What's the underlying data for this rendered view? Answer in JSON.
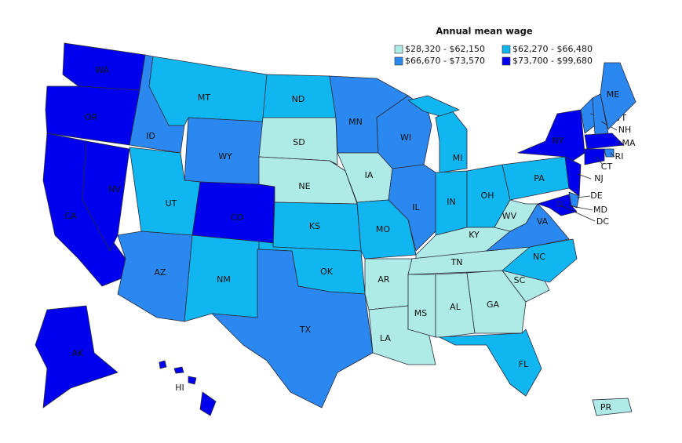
{
  "legend": {
    "title": "Annual mean wage",
    "items": [
      {
        "label": "$28,320 - $62,150",
        "color": "#aeeae6"
      },
      {
        "label": "$62,270 - $66,480",
        "color": "#10b6f0"
      },
      {
        "label": "$66,670 - $73,570",
        "color": "#2a88f0"
      },
      {
        "label": "$73,700 - $99,680",
        "color": "#0000ee"
      }
    ]
  },
  "states": [
    {
      "label": "WA",
      "color": "#0000ee"
    },
    {
      "label": "OR",
      "color": "#0000ee"
    },
    {
      "label": "CA",
      "color": "#0000ee"
    },
    {
      "label": "NV",
      "color": "#0000ee"
    },
    {
      "label": "ID",
      "color": "#2a88f0"
    },
    {
      "label": "MT",
      "color": "#10b6f0"
    },
    {
      "label": "WY",
      "color": "#2a88f0"
    },
    {
      "label": "UT",
      "color": "#10b6f0"
    },
    {
      "label": "CO",
      "color": "#0000ee"
    },
    {
      "label": "AZ",
      "color": "#2a88f0"
    },
    {
      "label": "NM",
      "color": "#10b6f0"
    },
    {
      "label": "ND",
      "color": "#10b6f0"
    },
    {
      "label": "SD",
      "color": "#aeeae6"
    },
    {
      "label": "NE",
      "color": "#aeeae6"
    },
    {
      "label": "KS",
      "color": "#10b6f0"
    },
    {
      "label": "OK",
      "color": "#10b6f0"
    },
    {
      "label": "TX",
      "color": "#2a88f0"
    },
    {
      "label": "MN",
      "color": "#2a88f0"
    },
    {
      "label": "IA",
      "color": "#aeeae6"
    },
    {
      "label": "MO",
      "color": "#10b6f0"
    },
    {
      "label": "AR",
      "color": "#aeeae6"
    },
    {
      "label": "LA",
      "color": "#aeeae6"
    },
    {
      "label": "WI",
      "color": "#2a88f0"
    },
    {
      "label": "IL",
      "color": "#2a88f0"
    },
    {
      "label": "MI",
      "color": "#10b6f0"
    },
    {
      "label": "IN",
      "color": "#10b6f0"
    },
    {
      "label": "OH",
      "color": "#10b6f0"
    },
    {
      "label": "KY",
      "color": "#aeeae6"
    },
    {
      "label": "TN",
      "color": "#aeeae6"
    },
    {
      "label": "MS",
      "color": "#aeeae6"
    },
    {
      "label": "AL",
      "color": "#aeeae6"
    },
    {
      "label": "GA",
      "color": "#aeeae6"
    },
    {
      "label": "SC",
      "color": "#aeeae6"
    },
    {
      "label": "NC",
      "color": "#10b6f0"
    },
    {
      "label": "FL",
      "color": "#10b6f0"
    },
    {
      "label": "VA",
      "color": "#2a88f0"
    },
    {
      "label": "WV",
      "color": "#aeeae6"
    },
    {
      "label": "PA",
      "color": "#10b6f0"
    },
    {
      "label": "NY",
      "color": "#0000ee"
    },
    {
      "label": "NJ",
      "color": "#0000ee"
    },
    {
      "label": "DE",
      "color": "#2a88f0"
    },
    {
      "label": "MD",
      "color": "#0000ee"
    },
    {
      "label": "DC",
      "color": "#0000ee"
    },
    {
      "label": "VT",
      "color": "#2a88f0"
    },
    {
      "label": "NH",
      "color": "#2a88f0"
    },
    {
      "label": "ME",
      "color": "#2a88f0"
    },
    {
      "label": "MA",
      "color": "#0000ee"
    },
    {
      "label": "RI",
      "color": "#2a88f0"
    },
    {
      "label": "CT",
      "color": "#0000ee"
    },
    {
      "label": "AK",
      "color": "#0000ee"
    },
    {
      "label": "HI",
      "color": "#0000ee"
    },
    {
      "label": "PR",
      "color": "#aeeae6"
    }
  ]
}
